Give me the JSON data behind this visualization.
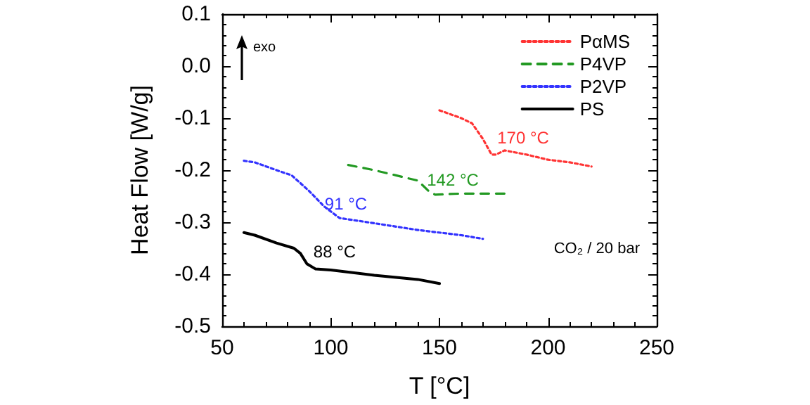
{
  "chart_data": {
    "type": "line",
    "xlabel": "T [°C]",
    "ylabel": "Heat Flow [W/g]",
    "xlim": [
      50,
      250
    ],
    "xticks": [
      50,
      100,
      150,
      200,
      250
    ],
    "ylim": [
      -0.5,
      0.1
    ],
    "yticks": [
      {
        "value": -0.5,
        "label": "-0.5"
      },
      {
        "value": -0.4,
        "label": "-0.4"
      },
      {
        "value": -0.3,
        "label": "-0.3"
      },
      {
        "value": -0.2,
        "label": "-0.2"
      },
      {
        "value": -0.1,
        "label": "-0.1"
      },
      {
        "value": 0,
        "label": "0.0"
      },
      {
        "value": 0.1,
        "label": "0.1"
      }
    ],
    "grid": false,
    "legend": "top right",
    "marker": "none",
    "series": [
      {
        "name": "PαMS",
        "color": "#ff3333",
        "line_style": "dotted",
        "x": [
          150,
          160,
          165,
          170,
          174,
          176,
          180,
          190,
          200,
          210,
          220
        ],
        "values": [
          -0.085,
          -0.1,
          -0.11,
          -0.14,
          -0.17,
          -0.17,
          -0.162,
          -0.17,
          -0.18,
          -0.185,
          -0.193
        ]
      },
      {
        "name": "P4VP",
        "color": "#229922",
        "line_style": "dashed",
        "x": [
          108,
          120,
          130,
          140,
          145,
          148,
          160,
          180
        ],
        "values": [
          -0.19,
          -0.2,
          -0.21,
          -0.22,
          -0.24,
          -0.247,
          -0.245,
          -0.245
        ]
      },
      {
        "name": "P2VP",
        "color": "#3333ff",
        "line_style": "dotted",
        "x": [
          60,
          65,
          75,
          82,
          90,
          97,
          104,
          120,
          140,
          160,
          170
        ],
        "values": [
          -0.182,
          -0.185,
          -0.2,
          -0.21,
          -0.24,
          -0.27,
          -0.292,
          -0.302,
          -0.315,
          -0.325,
          -0.332
        ]
      },
      {
        "name": "PS",
        "color": "#000000",
        "line_style": "solid",
        "x": [
          60,
          65,
          75,
          83,
          86,
          89,
          93,
          100,
          120,
          140,
          150
        ],
        "values": [
          -0.32,
          -0.325,
          -0.34,
          -0.35,
          -0.36,
          -0.38,
          -0.39,
          -0.392,
          -0.402,
          -0.41,
          -0.418
        ]
      }
    ],
    "annotations": [
      "170 °C",
      "142 °C",
      "91 °C",
      "88 °C",
      "exo",
      "CO₂ / 20 bar"
    ]
  }
}
